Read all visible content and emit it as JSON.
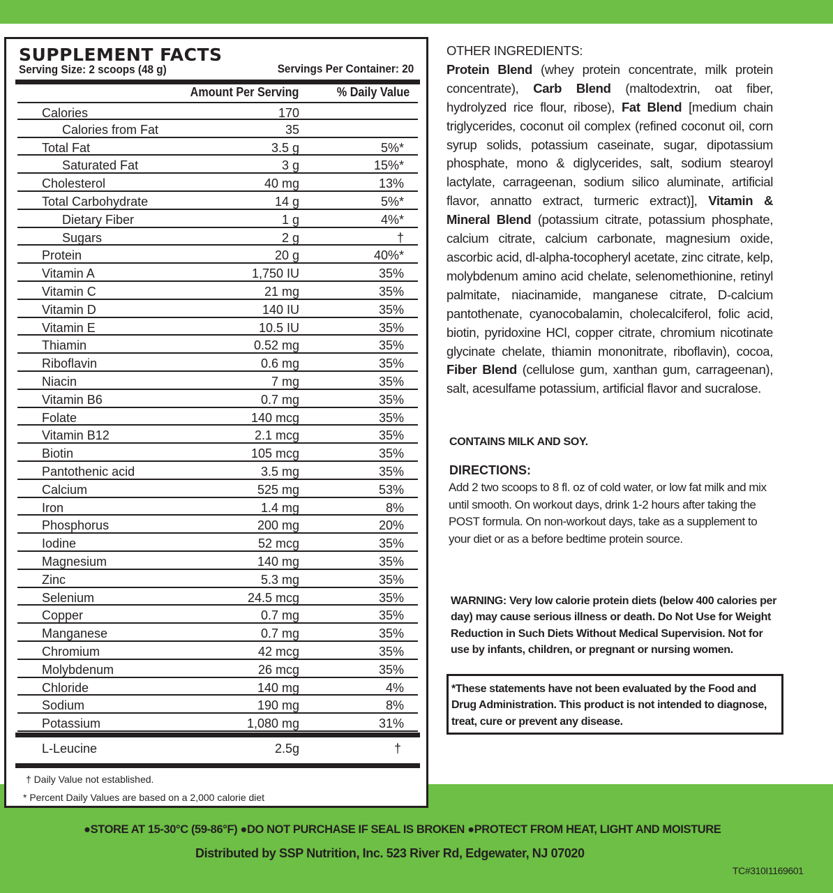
{
  "colors": {
    "brand_green": "#6dbf45",
    "ink": "#231f20"
  },
  "facts": {
    "title": "SUPPLEMENT FACTS",
    "serving_size": "Serving Size: 2 scoops (48 g)",
    "servings_per_container": "Servings Per Container: 20",
    "col_amount": "Amount Per Serving",
    "col_dv": "% Daily Value",
    "rows": [
      {
        "name": "Calories",
        "amount": "170",
        "dv": ""
      },
      {
        "name": "Calories from Fat",
        "amount": "35",
        "dv": "",
        "indent": true
      },
      {
        "name": "Total Fat",
        "amount": "3.5 g",
        "dv": "5%*"
      },
      {
        "name": "Saturated Fat",
        "amount": "3 g",
        "dv": "15%*",
        "indent": true
      },
      {
        "name": "Cholesterol",
        "amount": "40 mg",
        "dv": "13%"
      },
      {
        "name": "Total Carbohydrate",
        "amount": "14 g",
        "dv": "5%*"
      },
      {
        "name": "Dietary Fiber",
        "amount": "1 g",
        "dv": "4%*",
        "indent": true
      },
      {
        "name": "Sugars",
        "amount": "2 g",
        "dv": "†",
        "indent": true
      },
      {
        "name": "Protein",
        "amount": "20 g",
        "dv": "40%*"
      },
      {
        "name": "Vitamin A",
        "amount": "1,750 IU",
        "dv": "35%"
      },
      {
        "name": "Vitamin C",
        "amount": "21 mg",
        "dv": "35%"
      },
      {
        "name": "Vitamin D",
        "amount": "140 IU",
        "dv": "35%"
      },
      {
        "name": "Vitamin E",
        "amount": "10.5 IU",
        "dv": "35%"
      },
      {
        "name": "Thiamin",
        "amount": "0.52 mg",
        "dv": "35%"
      },
      {
        "name": "Riboflavin",
        "amount": "0.6 mg",
        "dv": "35%"
      },
      {
        "name": "Niacin",
        "amount": "7 mg",
        "dv": "35%"
      },
      {
        "name": "Vitamin B6",
        "amount": "0.7 mg",
        "dv": "35%"
      },
      {
        "name": "Folate",
        "amount": "140 mcg",
        "dv": "35%"
      },
      {
        "name": "Vitamin B12",
        "amount": "2.1 mcg",
        "dv": "35%"
      },
      {
        "name": "Biotin",
        "amount": "105 mcg",
        "dv": "35%"
      },
      {
        "name": "Pantothenic acid",
        "amount": "3.5 mg",
        "dv": "35%"
      },
      {
        "name": "Calcium",
        "amount": "525 mg",
        "dv": "53%"
      },
      {
        "name": "Iron",
        "amount": "1.4 mg",
        "dv": "8%"
      },
      {
        "name": "Phosphorus",
        "amount": "200 mg",
        "dv": "20%"
      },
      {
        "name": "Iodine",
        "amount": "52 mcg",
        "dv": "35%"
      },
      {
        "name": "Magnesium",
        "amount": "140 mg",
        "dv": "35%"
      },
      {
        "name": "Zinc",
        "amount": "5.3 mg",
        "dv": "35%"
      },
      {
        "name": "Selenium",
        "amount": "24.5 mcg",
        "dv": "35%"
      },
      {
        "name": "Copper",
        "amount": "0.7 mg",
        "dv": "35%"
      },
      {
        "name": "Manganese",
        "amount": "0.7 mg",
        "dv": "35%"
      },
      {
        "name": "Chromium",
        "amount": "42 mcg",
        "dv": "35%"
      },
      {
        "name": "Molybdenum",
        "amount": "26 mcg",
        "dv": "35%"
      },
      {
        "name": "Chloride",
        "amount": "140 mg",
        "dv": "4%"
      },
      {
        "name": "Sodium",
        "amount": "190 mg",
        "dv": "8%"
      },
      {
        "name": "Potassium",
        "amount": "1,080 mg",
        "dv": "31%"
      }
    ],
    "leucine": {
      "name": "L-Leucine",
      "amount": "2.5g",
      "dv": "†"
    },
    "footnote_dagger": "† Daily Value not established.",
    "footnote_star": "* Percent Daily Values are based on a 2,000 calorie diet"
  },
  "ingredients": {
    "heading": "OTHER INGREDIENTS:",
    "parts": [
      {
        "b": "Protein Blend",
        "t": " (whey protein concentrate, milk protein concentrate), "
      },
      {
        "b": "Carb Blend",
        "t": " (maltodextrin, oat fiber, hydrolyzed rice flour, ribose), "
      },
      {
        "b": "Fat Blend",
        "t": " [medium chain triglycerides, coconut oil complex (refined coconut oil, corn syrup solids, potassium caseinate, sugar, dipotassium phosphate, mono & diglycerides, salt, sodium stearoyl lactylate, carrageenan, sodium silico aluminate, artificial flavor, annatto extract, turmeric extract)], "
      },
      {
        "b": "Vitamin & Mineral Blend",
        "t": " (potassium citrate, potassium phosphate, calcium citrate, calcium carbonate, magnesium oxide, ascorbic acid, dl-alpha-tocopheryl acetate, zinc citrate, kelp, molybdenum amino acid chelate, selenomethionine, retinyl palmitate, niacinamide, manganese citrate, D-calcium pantothenate, cyanocobalamin, cholecalciferol, folic acid, biotin, pyridoxine HCl, copper citrate, chromium nicotinate glycinate chelate, thiamin mononitrate, riboflavin), cocoa, "
      },
      {
        "b": "Fiber Blend",
        "t": " (cellulose gum, xanthan gum, carrageenan), salt, acesulfame potassium, artificial flavor and sucralose."
      }
    ]
  },
  "contains": "CONTAINS MILK AND SOY.",
  "directions": {
    "heading": "DIRECTIONS:",
    "text": "Add 2 two scoops to 8 fl. oz of cold water, or low fat milk and mix until smooth.  On workout days, drink 1-2 hours after taking the POST formula.  On non-workout days, take as a supplement to your diet or as a before bedtime protein source."
  },
  "warning": "WARNING: Very low calorie protein diets (below 400 calories per day) may cause serious illness or death. Do Not Use for Weight Reduction in Such Diets Without Medical Supervision. Not for use by infants, children, or pregnant or nursing women.",
  "disclaimer": "*These statements have not been evaluated by the Food and Drug Administration.  This product is not intended to diagnose, treat, cure or prevent any disease.",
  "footer": {
    "store": [
      "STORE AT 15-30°C (59-86°F)",
      "DO NOT PURCHASE IF SEAL IS BROKEN",
      "PROTECT FROM HEAT, LIGHT AND MOISTURE"
    ],
    "distributor": "Distributed by SSP Nutrition, Inc.  523 River Rd, Edgewater, NJ  07020",
    "code": "TC#310I1169601"
  }
}
